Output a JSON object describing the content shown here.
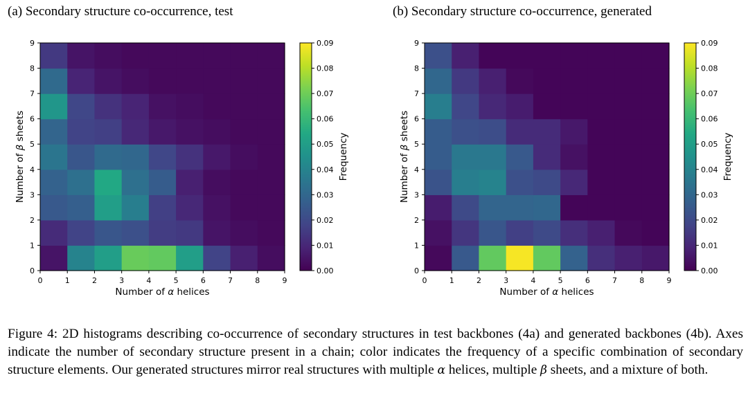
{
  "chart_data": [
    {
      "type": "heatmap",
      "panel_label": "(a)",
      "title": "Secondary structure co-occurrence, test",
      "xlabel_prefix": "Number of ",
      "xlabel_symbol": "α",
      "xlabel_suffix": " helices",
      "ylabel_prefix": "Number of ",
      "ylabel_symbol": "β",
      "ylabel_suffix": " sheets",
      "x_ticks": [
        "0",
        "1",
        "2",
        "3",
        "4",
        "5",
        "6",
        "7",
        "8",
        "9"
      ],
      "y_ticks": [
        "0",
        "1",
        "2",
        "3",
        "4",
        "5",
        "6",
        "7",
        "8",
        "9"
      ],
      "xlim": [
        0,
        9
      ],
      "ylim": [
        0,
        9
      ],
      "colorbar_label": "Frequency",
      "colorbar_ticks": [
        "0.00",
        "0.01",
        "0.02",
        "0.03",
        "0.04",
        "0.05",
        "0.06",
        "0.07",
        "0.08",
        "0.09"
      ],
      "vmin": 0.0,
      "vmax": 0.09,
      "cmap": "viridis",
      "values_note": "rows indexed by number of beta sheets (0..8), columns by number of alpha helices (0..8)",
      "values": [
        [
          0.005,
          0.04,
          0.05,
          0.069,
          0.068,
          0.05,
          0.018,
          0.008,
          0.003
        ],
        [
          0.011,
          0.018,
          0.024,
          0.022,
          0.016,
          0.015,
          0.005,
          0.003,
          0.002
        ],
        [
          0.025,
          0.027,
          0.05,
          0.038,
          0.017,
          0.01,
          0.004,
          0.002,
          0.002
        ],
        [
          0.028,
          0.033,
          0.054,
          0.033,
          0.026,
          0.008,
          0.003,
          0.002,
          0.002
        ],
        [
          0.035,
          0.024,
          0.031,
          0.03,
          0.019,
          0.013,
          0.006,
          0.003,
          0.002
        ],
        [
          0.029,
          0.018,
          0.017,
          0.01,
          0.006,
          0.004,
          0.003,
          0.002,
          0.002
        ],
        [
          0.047,
          0.019,
          0.013,
          0.009,
          0.004,
          0.003,
          0.002,
          0.002,
          0.002
        ],
        [
          0.031,
          0.009,
          0.005,
          0.003,
          0.002,
          0.002,
          0.002,
          0.002,
          0.002
        ],
        [
          0.015,
          0.005,
          0.003,
          0.002,
          0.002,
          0.002,
          0.002,
          0.002,
          0.002
        ]
      ]
    },
    {
      "type": "heatmap",
      "panel_label": "(b)",
      "title": "Secondary structure co-occurrence, generated",
      "xlabel_prefix": "Number of ",
      "xlabel_symbol": "α",
      "xlabel_suffix": " helices",
      "ylabel_prefix": "Number of ",
      "ylabel_symbol": "β",
      "ylabel_suffix": " sheets",
      "x_ticks": [
        "0",
        "1",
        "2",
        "3",
        "4",
        "5",
        "6",
        "7",
        "8",
        "9"
      ],
      "y_ticks": [
        "0",
        "1",
        "2",
        "3",
        "4",
        "5",
        "6",
        "7",
        "8",
        "9"
      ],
      "xlim": [
        0,
        9
      ],
      "ylim": [
        0,
        9
      ],
      "colorbar_label": "Frequency",
      "colorbar_ticks": [
        "0.00",
        "0.01",
        "0.02",
        "0.03",
        "0.04",
        "0.05",
        "0.06",
        "0.07",
        "0.08",
        "0.09"
      ],
      "vmin": 0.0,
      "vmax": 0.09,
      "cmap": "viridis",
      "values_note": "rows indexed by number of beta sheets (0..8), columns by number of alpha helices (0..8)",
      "values": [
        [
          0.002,
          0.025,
          0.068,
          0.089,
          0.068,
          0.028,
          0.012,
          0.008,
          0.006
        ],
        [
          0.004,
          0.014,
          0.024,
          0.017,
          0.02,
          0.012,
          0.008,
          0.002,
          0.001
        ],
        [
          0.007,
          0.02,
          0.029,
          0.029,
          0.03,
          0.001,
          0.001,
          0.001,
          0.001
        ],
        [
          0.023,
          0.038,
          0.04,
          0.022,
          0.02,
          0.01,
          0.001,
          0.001,
          0.001
        ],
        [
          0.026,
          0.036,
          0.036,
          0.025,
          0.011,
          0.004,
          0.001,
          0.001,
          0.001
        ],
        [
          0.026,
          0.022,
          0.021,
          0.011,
          0.011,
          0.006,
          0.001,
          0.001,
          0.001
        ],
        [
          0.038,
          0.019,
          0.01,
          0.007,
          0.001,
          0.001,
          0.001,
          0.001,
          0.001
        ],
        [
          0.03,
          0.015,
          0.008,
          0.002,
          0.001,
          0.001,
          0.001,
          0.001,
          0.001
        ],
        [
          0.022,
          0.008,
          0.001,
          0.001,
          0.001,
          0.001,
          0.001,
          0.001,
          0.001
        ]
      ]
    }
  ],
  "caption": {
    "part1": "Figure 4: 2D histograms describing co-occurrence of secondary structures in test backbones (4a) and generated backbones (4b). Axes indicate the number of secondary structure present in a chain; color indicates the frequency of a specific combination of secondary structure elements. Our generated structures mirror real structures with multiple ",
    "alpha": "α",
    "part2": " helices, multiple ",
    "beta": "β",
    "part3": " sheets, and a mixture of both."
  }
}
